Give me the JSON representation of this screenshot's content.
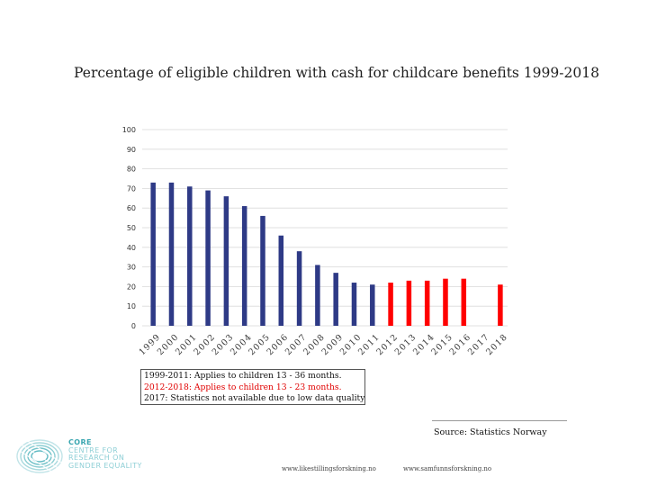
{
  "chart_data": {
    "type": "bar",
    "title": "Percentage of eligible children with cash for childcare benefits 1999-2018",
    "xlabel": "",
    "ylabel": "",
    "ylim": [
      0,
      100
    ],
    "yticks": [
      "0",
      "10",
      "20",
      "30",
      "40",
      "50",
      "60",
      "70",
      "80",
      "90",
      "100"
    ],
    "grid": true,
    "categories": [
      "1999",
      "2000",
      "2001",
      "2002",
      "2003",
      "2004",
      "2005",
      "2006",
      "2007",
      "2008",
      "2009",
      "2010",
      "2011",
      "2012",
      "2013",
      "2014",
      "2015",
      "2016",
      "2017",
      "2018"
    ],
    "values": [
      73,
      73,
      71,
      69,
      66,
      61,
      56,
      46,
      38,
      31,
      27,
      22,
      21,
      22,
      23,
      23,
      24,
      24,
      null,
      21
    ],
    "colors": {
      "1999-2011": "#2e3a86",
      "2012-2018": "#ff0000"
    }
  },
  "notes": {
    "line1": "1999-2011: Applies to children 13 - 36 months.",
    "line2": "2012-2018: Applies to children 13 - 23 months.",
    "line3": "2017: Statistics not available due to low data quality."
  },
  "source": "Source: Statistics Norway",
  "logo": {
    "line1": "CORE",
    "line2": "CENTRE FOR",
    "line3": "RESEARCH ON",
    "line4": "GENDER EQUALITY"
  },
  "urls": {
    "left": "www.likestillingsforskning.no",
    "right": "www.samfunnsforskning.no"
  }
}
